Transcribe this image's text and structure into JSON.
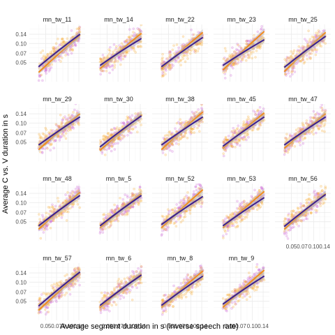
{
  "chart_data": {
    "type": "scatter",
    "xlabel": "Average segment duration in s (inverse speech rate)",
    "ylabel": "Average C vs. V duration in s",
    "x_scale": "log",
    "y_scale": "log",
    "xlim": [
      0.03,
      0.17
    ],
    "ylim": [
      0.025,
      0.2
    ],
    "x_ticks": [
      0.05,
      0.07,
      0.1,
      0.14
    ],
    "x_tick_labels": [
      "0.05",
      "0.07",
      "0.10",
      "0.14"
    ],
    "y_ticks": [
      0.05,
      0.07,
      0.1,
      0.14
    ],
    "y_tick_labels": [
      "0.05",
      "0.07",
      "0.10",
      "0.14"
    ],
    "grid": true,
    "series_colors": {
      "consonant_points": "#f6a623",
      "vowel_points": "#c85ad2",
      "consonant_line": "#f28c1c",
      "vowel_line": "#3b1f8f",
      "ribbon": "#b3b3b3"
    },
    "panels": [
      {
        "label": "mn_tw_11",
        "fit_a": [
          0.043,
          0.14
        ],
        "fit_b": [
          0.035,
          0.135
        ]
      },
      {
        "label": "mn_tw_14",
        "fit_a": [
          0.045,
          0.12
        ],
        "fit_b": [
          0.04,
          0.145
        ]
      },
      {
        "label": "mn_tw_22",
        "fit_a": [
          0.043,
          0.125
        ],
        "fit_b": [
          0.04,
          0.15
        ]
      },
      {
        "label": "mn_tw_23",
        "fit_a": [
          0.045,
          0.115
        ],
        "fit_b": [
          0.038,
          0.155
        ]
      },
      {
        "label": "mn_tw_25",
        "fit_a": [
          0.042,
          0.13
        ],
        "fit_b": [
          0.036,
          0.15
        ]
      },
      {
        "label": "mn_tw_29",
        "fit_a": [
          0.045,
          0.125
        ],
        "fit_b": [
          0.038,
          0.14
        ]
      },
      {
        "label": "mn_tw_30",
        "fit_a": [
          0.042,
          0.13
        ],
        "fit_b": [
          0.037,
          0.135
        ]
      },
      {
        "label": "mn_tw_38",
        "fit_a": [
          0.045,
          0.125
        ],
        "fit_b": [
          0.038,
          0.15
        ]
      },
      {
        "label": "mn_tw_45",
        "fit_a": [
          0.043,
          0.125
        ],
        "fit_b": [
          0.04,
          0.145
        ]
      },
      {
        "label": "mn_tw_47",
        "fit_a": [
          0.045,
          0.125
        ],
        "fit_b": [
          0.04,
          0.14
        ]
      },
      {
        "label": "mn_tw_48",
        "fit_a": [
          0.043,
          0.13
        ],
        "fit_b": [
          0.038,
          0.145
        ]
      },
      {
        "label": "mn_tw_5",
        "fit_a": [
          0.043,
          0.13
        ],
        "fit_b": [
          0.04,
          0.14
        ]
      },
      {
        "label": "mn_tw_52",
        "fit_a": [
          0.045,
          0.125
        ],
        "fit_b": [
          0.04,
          0.16
        ]
      },
      {
        "label": "mn_tw_53",
        "fit_a": [
          0.043,
          0.12
        ],
        "fit_b": [
          0.04,
          0.15
        ]
      },
      {
        "label": "mn_tw_56",
        "fit_a": [
          0.042,
          0.135
        ],
        "fit_b": [
          0.038,
          0.14
        ]
      },
      {
        "label": "mn_tw_57",
        "fit_a": [
          0.042,
          0.145
        ],
        "fit_b": [
          0.036,
          0.14
        ]
      },
      {
        "label": "mn_tw_6",
        "fit_a": [
          0.043,
          0.13
        ],
        "fit_b": [
          0.04,
          0.135
        ]
      },
      {
        "label": "mn_tw_8",
        "fit_a": [
          0.043,
          0.125
        ],
        "fit_b": [
          0.04,
          0.15
        ]
      },
      {
        "label": "mn_tw_9",
        "fit_a": [
          0.045,
          0.125
        ],
        "fit_b": [
          0.04,
          0.155
        ]
      }
    ]
  }
}
